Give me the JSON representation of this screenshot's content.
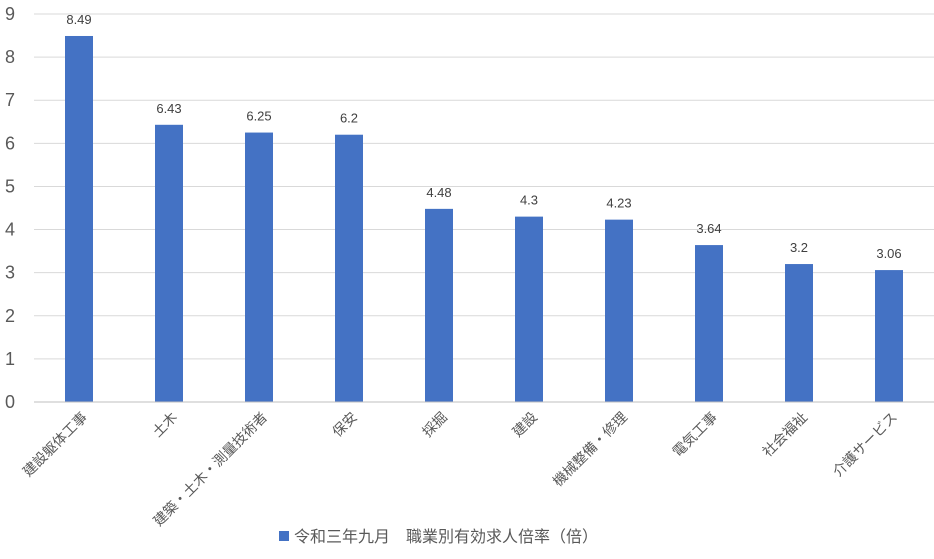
{
  "chart_data": {
    "type": "bar",
    "categories": [
      "建設躯体工事",
      "土木",
      "建築・土木・測量技術者",
      "保安",
      "採掘",
      "建設",
      "機械整備・修理",
      "電気工事",
      "社会福祉",
      "介護サービス"
    ],
    "series": [
      {
        "name": "令和三年九月　職業別有効求人倍率（倍）",
        "values": [
          8.49,
          6.43,
          6.25,
          6.2,
          4.48,
          4.3,
          4.23,
          3.64,
          3.2,
          3.06
        ],
        "color": "#4472c4"
      }
    ],
    "data_labels": [
      "8.49",
      "6.43",
      "6.25",
      "6.2",
      "4.48",
      "4.3",
      "4.23",
      "3.64",
      "3.2",
      "3.06"
    ],
    "ylim": [
      0,
      9
    ],
    "yticks": [
      "0",
      "1",
      "2",
      "3",
      "4",
      "5",
      "6",
      "7",
      "8",
      "9"
    ],
    "grid": true,
    "legend": "bottom",
    "title": "",
    "xlabel": "",
    "ylabel": ""
  }
}
